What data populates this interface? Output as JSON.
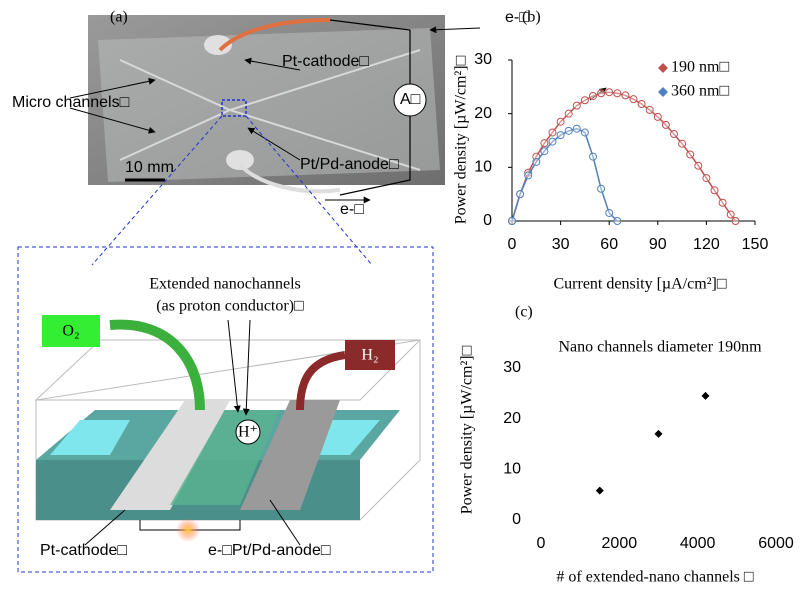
{
  "figure_a": {
    "label": "(a)",
    "photo": {
      "electron_top": "e-□",
      "cathode": "Pt-cathode□",
      "micro_channels": "Micro channels□",
      "ammeter": "A□",
      "anode": "Pt/Pd-anode□",
      "scale": "10 mm",
      "electron_bottom": "e-□"
    },
    "schematic": {
      "title": "Extended nanochannels",
      "subtitle": "(as proton conductor)□",
      "oxygen": "O₂",
      "hydrogen": "H₂",
      "proton": "H⁺",
      "cathode": "Pt-cathode□",
      "anode": "e-□Pt/Pd-anode□"
    }
  },
  "chart_data": [
    {
      "type": "line",
      "panel_label": "(b)",
      "x_label": "Current density [µA/cm²]□",
      "y_label": "Power density [µW/cm²]□",
      "xlim": [
        0,
        150
      ],
      "ylim": [
        0,
        30
      ],
      "xticks": [
        0,
        30,
        60,
        90,
        120,
        150
      ],
      "yticks": [
        0,
        10,
        20,
        30
      ],
      "legend": "upper right",
      "series": [
        {
          "name": "190 nm□",
          "color": "#c0504d",
          "x": [
            0,
            5,
            10,
            15,
            20,
            25,
            30,
            35,
            40,
            45,
            50,
            55,
            60,
            65,
            70,
            75,
            80,
            85,
            90,
            95,
            100,
            105,
            110,
            115,
            120,
            125,
            130,
            135,
            138
          ],
          "values": [
            0,
            5,
            9,
            12,
            14.5,
            16.5,
            18.5,
            20,
            21.5,
            22.5,
            23.3,
            23.8,
            24,
            23.8,
            23.4,
            22.7,
            21.8,
            20.7,
            19.4,
            17.9,
            16.2,
            14.4,
            12.4,
            10.3,
            8,
            5.7,
            3.4,
            1.2,
            0
          ]
        },
        {
          "name": "360 nm□",
          "color": "#4f81bd",
          "x": [
            0,
            5,
            10,
            15,
            20,
            25,
            30,
            35,
            40,
            45,
            50,
            55,
            60,
            65
          ],
          "values": [
            0,
            5,
            8.5,
            11,
            13,
            14.8,
            16,
            16.8,
            17.2,
            16.5,
            12,
            6,
            1.5,
            0
          ]
        }
      ]
    },
    {
      "type": "scatter",
      "panel_label": "(c)",
      "title": "Nano channels diameter 190nm",
      "x_label": "# of extended-nano channels □",
      "y_label": "Power density  [µW/cm²]□",
      "xlim": [
        0,
        6000
      ],
      "ylim": [
        0,
        30
      ],
      "xticks": [
        0,
        2000,
        4000,
        6000
      ],
      "yticks": [
        0,
        10,
        20,
        30
      ],
      "color": "#000000",
      "x": [
        1500,
        3000,
        4200
      ],
      "values": [
        5.8,
        17,
        24.5
      ]
    }
  ]
}
